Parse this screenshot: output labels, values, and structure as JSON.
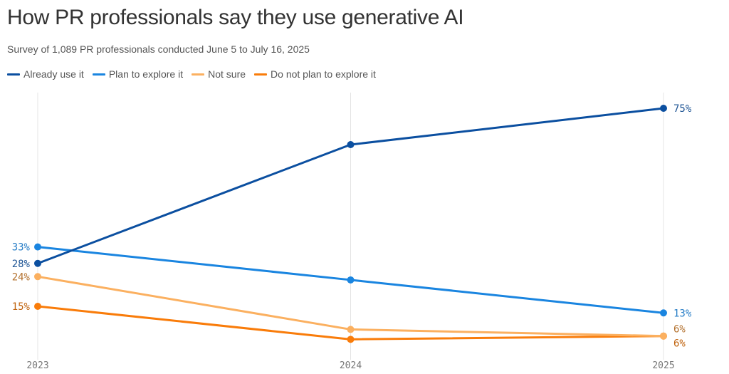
{
  "header": {
    "title": "How PR professionals say they use generative AI",
    "subtitle": "Survey of 1,089 PR professionals conducted June 5 to July 16, 2025"
  },
  "chart_data": {
    "type": "line",
    "title": "How PR professionals say they use generative AI",
    "subtitle": "Survey of 1,089 PR professionals conducted June 5 to July 16, 2025",
    "xlabel": "",
    "ylabel": "",
    "x": [
      "2023",
      "2024",
      "2025"
    ],
    "ylim": [
      0,
      80
    ],
    "grid": "vertical at each year",
    "legend": "top-left",
    "series": [
      {
        "name": "Already use it",
        "color": "#0b4fa0",
        "label_color": "#1e5494",
        "values": [
          28,
          64,
          75
        ],
        "labels": {
          "start": "28%",
          "end": "75%"
        }
      },
      {
        "name": "Plan to explore it",
        "color": "#1a85e0",
        "label_color": "#2a7fc7",
        "values": [
          33,
          23,
          13
        ],
        "labels": {
          "start": "33%",
          "end": "13%"
        }
      },
      {
        "name": "Not sure",
        "color": "#fbb060",
        "label_color": "#b3712e",
        "values": [
          24,
          8,
          6
        ],
        "labels": {
          "start": "24%",
          "end": "6%"
        }
      },
      {
        "name": "Do not plan to explore it",
        "color": "#f97c0a",
        "label_color": "#c0630e",
        "values": [
          15,
          5,
          6
        ],
        "labels": {
          "start": "15%",
          "end": "6%"
        }
      }
    ]
  }
}
